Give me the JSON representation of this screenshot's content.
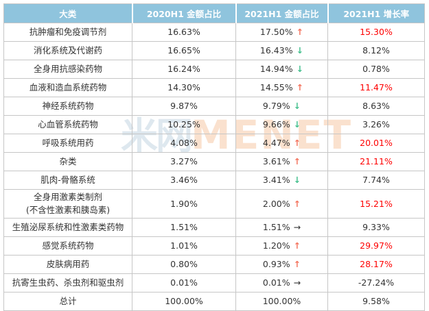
{
  "colors": {
    "header_bg": "#8FC4DD",
    "header_text": "#FFFFFF",
    "body_text": "#333333",
    "growth_highlight_red": "#FE0000",
    "up_arrow": "#F4745E",
    "down_arrow": "#45C08E",
    "flat_arrow": "#333333",
    "border": "#C6C6C6",
    "watermark_cn": "#DEE8EF",
    "watermark_en": "#FAE1CE"
  },
  "icons": {
    "up_arrow": "↑",
    "down_arrow": "↓",
    "flat_arrow": "→"
  },
  "watermark": {
    "cn": "米网",
    "en": "MENET"
  },
  "table": {
    "headers": [
      "大类",
      "2020H1 金额占比",
      "2021H1 金额占比",
      "2021H1 增长率"
    ],
    "rows": [
      {
        "category": "抗肿瘤和免疫调节剂",
        "category2": "",
        "share_2020": "16.63%",
        "share_2021": "17.50%",
        "trend": "up",
        "growth": "15.30%",
        "growth_red": true
      },
      {
        "category": "消化系统及代谢药",
        "category2": "",
        "share_2020": "16.65%",
        "share_2021": "16.43%",
        "trend": "down",
        "growth": "8.12%",
        "growth_red": false
      },
      {
        "category": "全身用抗感染药物",
        "category2": "",
        "share_2020": "16.24%",
        "share_2021": "14.94%",
        "trend": "down",
        "growth": "0.78%",
        "growth_red": false
      },
      {
        "category": "血液和造血系统药物",
        "category2": "",
        "share_2020": "14.30%",
        "share_2021": "14.55%",
        "trend": "up",
        "growth": "11.47%",
        "growth_red": true
      },
      {
        "category": "神经系统药物",
        "category2": "",
        "share_2020": "9.87%",
        "share_2021": "9.79%",
        "trend": "down",
        "growth": "8.63%",
        "growth_red": false
      },
      {
        "category": "心血管系统药物",
        "category2": "",
        "share_2020": "10.25%",
        "share_2021": "9.66%",
        "trend": "down",
        "growth": "3.26%",
        "growth_red": false
      },
      {
        "category": "呼吸系统用药",
        "category2": "",
        "share_2020": "4.08%",
        "share_2021": "4.47%",
        "trend": "up",
        "growth": "20.01%",
        "growth_red": true
      },
      {
        "category": "杂类",
        "category2": "",
        "share_2020": "3.27%",
        "share_2021": "3.61%",
        "trend": "up",
        "growth": "21.11%",
        "growth_red": true
      },
      {
        "category": "肌肉-骨骼系统",
        "category2": "",
        "share_2020": "3.46%",
        "share_2021": "3.41%",
        "trend": "down",
        "growth": "7.74%",
        "growth_red": false
      },
      {
        "category": "全身用激素类制剂",
        "category2": "(不含性激素和胰岛素)",
        "share_2020": "1.90%",
        "share_2021": "2.00%",
        "trend": "up",
        "growth": "15.21%",
        "growth_red": true
      },
      {
        "category": "生殖泌尿系统和性激素类药物",
        "category2": "",
        "share_2020": "1.51%",
        "share_2021": "1.51%",
        "trend": "flat",
        "growth": "9.33%",
        "growth_red": false
      },
      {
        "category": "感觉系统药物",
        "category2": "",
        "share_2020": "1.01%",
        "share_2021": "1.20%",
        "trend": "up",
        "growth": "29.97%",
        "growth_red": true
      },
      {
        "category": "皮肤病用药",
        "category2": "",
        "share_2020": "0.80%",
        "share_2021": "0.93%",
        "trend": "up",
        "growth": "28.17%",
        "growth_red": true
      },
      {
        "category": "抗寄生虫药、杀虫剂和驱虫剂",
        "category2": "",
        "share_2020": "0.01%",
        "share_2021": "0.01%",
        "trend": "flat",
        "growth": "-27.24%",
        "growth_red": false
      },
      {
        "category": "总计",
        "category2": "",
        "share_2020": "100.00%",
        "share_2021": "100.00%",
        "trend": "none",
        "growth": "9.58%",
        "growth_red": false
      }
    ]
  },
  "chart_data": {
    "type": "table",
    "title": "",
    "columns": [
      "大类",
      "2020H1 金额占比",
      "2021H1 金额占比",
      "2021H1 增长率"
    ],
    "rows": [
      [
        "抗肿瘤和免疫调节剂",
        "16.63%",
        "17.50% ↑",
        "15.30%"
      ],
      [
        "消化系统及代谢药",
        "16.65%",
        "16.43% ↓",
        "8.12%"
      ],
      [
        "全身用抗感染药物",
        "16.24%",
        "14.94% ↓",
        "0.78%"
      ],
      [
        "血液和造血系统药物",
        "14.30%",
        "14.55% ↑",
        "11.47%"
      ],
      [
        "神经系统药物",
        "9.87%",
        "9.79% ↓",
        "8.63%"
      ],
      [
        "心血管系统药物",
        "10.25%",
        "9.66% ↓",
        "3.26%"
      ],
      [
        "呼吸系统用药",
        "4.08%",
        "4.47% ↑",
        "20.01%"
      ],
      [
        "杂类",
        "3.27%",
        "3.61% ↑",
        "21.11%"
      ],
      [
        "肌肉-骨骼系统",
        "3.46%",
        "3.41% ↓",
        "7.74%"
      ],
      [
        "全身用激素类制剂(不含性激素和胰岛素)",
        "1.90%",
        "2.00% ↑",
        "15.21%"
      ],
      [
        "生殖泌尿系统和性激素类药物",
        "1.51%",
        "1.51% →",
        "9.33%"
      ],
      [
        "感觉系统药物",
        "1.01%",
        "1.20% ↑",
        "29.97%"
      ],
      [
        "皮肤病用药",
        "0.80%",
        "0.93% ↑",
        "28.17%"
      ],
      [
        "抗寄生虫药、杀虫剂和驱虫剂",
        "0.01%",
        "0.01% →",
        "-27.24%"
      ],
      [
        "总计",
        "100.00%",
        "100.00%",
        "9.58%"
      ]
    ]
  }
}
